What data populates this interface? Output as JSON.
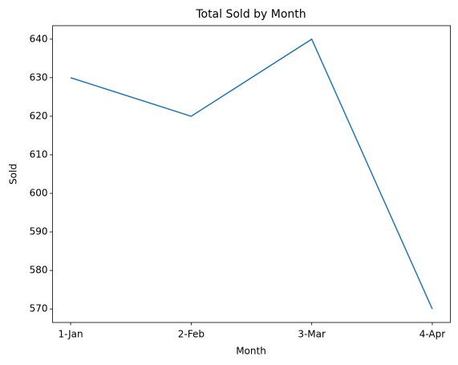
{
  "chart_data": {
    "type": "line",
    "title": "Total Sold by Month",
    "x_label": "Month",
    "y_label": "Sold",
    "categories": [
      "1-Jan",
      "2-Feb",
      "3-Mar",
      "4-Apr"
    ],
    "values": [
      630,
      620,
      640,
      570
    ],
    "color": "#1f77b4",
    "ylim": [
      566.5,
      643.5
    ],
    "yticks": [
      570,
      580,
      590,
      600,
      610,
      620,
      630,
      640
    ],
    "grid": false
  }
}
